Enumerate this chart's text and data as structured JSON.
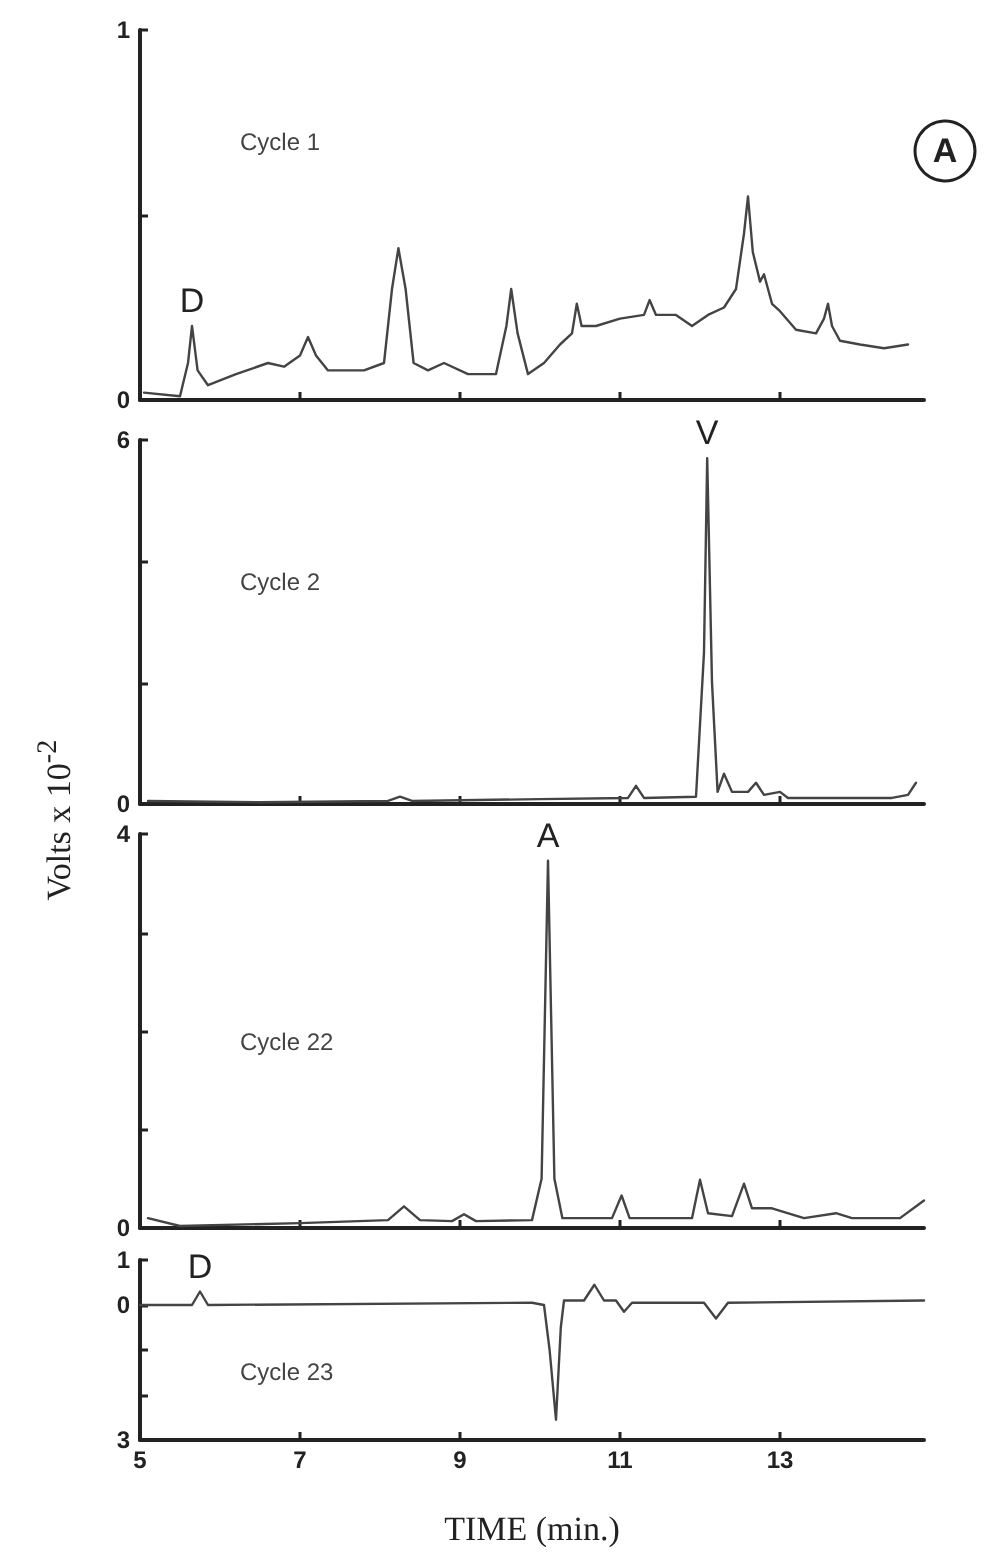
{
  "chart_data": [
    {
      "type": "line",
      "title": "Cycle 1",
      "color": "#444444",
      "marker": "none",
      "line_style": "solid",
      "grid": false,
      "tick_labels": "y",
      "xlim": [
        5,
        14.8
      ],
      "xticks": [
        5,
        7,
        9,
        11,
        13
      ],
      "ylim": [
        0,
        1
      ],
      "yticks": [
        0,
        {
          "value": 0.5,
          "label": null
        },
        1
      ],
      "annotations": [
        {
          "text": "D",
          "x": 5.65,
          "y": 0.2
        },
        "A"
      ],
      "x": [
        5.05,
        5.5,
        5.6,
        5.65,
        5.72,
        5.85,
        6.2,
        6.6,
        6.8,
        7.0,
        7.1,
        7.2,
        7.35,
        7.8,
        8.05,
        8.15,
        8.23,
        8.32,
        8.42,
        8.6,
        8.8,
        9.1,
        9.45,
        9.58,
        9.64,
        9.72,
        9.85,
        10.05,
        10.25,
        10.4,
        10.46,
        10.52,
        10.7,
        11.0,
        11.3,
        11.37,
        11.45,
        11.7,
        11.9,
        12.1,
        12.3,
        12.45,
        12.55,
        12.6,
        12.66,
        12.75,
        12.8,
        12.9,
        13.0,
        13.2,
        13.45,
        13.55,
        13.6,
        13.65,
        13.75,
        14.0,
        14.3,
        14.6
      ],
      "values": [
        0.02,
        0.01,
        0.1,
        0.2,
        0.08,
        0.04,
        0.07,
        0.1,
        0.09,
        0.12,
        0.17,
        0.12,
        0.08,
        0.08,
        0.1,
        0.3,
        0.41,
        0.3,
        0.1,
        0.08,
        0.1,
        0.07,
        0.07,
        0.2,
        0.3,
        0.18,
        0.07,
        0.1,
        0.15,
        0.18,
        0.26,
        0.2,
        0.2,
        0.22,
        0.23,
        0.27,
        0.23,
        0.23,
        0.2,
        0.23,
        0.25,
        0.3,
        0.45,
        0.55,
        0.4,
        0.32,
        0.34,
        0.26,
        0.24,
        0.19,
        0.18,
        0.22,
        0.26,
        0.2,
        0.16,
        0.15,
        0.14,
        0.15
      ]
    },
    {
      "type": "line",
      "title": "Cycle 2",
      "ylabel": "Volts x 10$^{-2}$",
      "color": "#444444",
      "marker": "none",
      "line_style": "solid",
      "grid": false,
      "tick_labels": "y",
      "xlim": [
        5,
        14.8
      ],
      "xticks": [
        5,
        7,
        9,
        11,
        13
      ],
      "ylim": [
        0,
        6
      ],
      "yticks": [
        0,
        {
          "value": 2,
          "label": null
        },
        {
          "value": 4,
          "label": null
        },
        6
      ],
      "annotations": [
        {
          "text": "V",
          "x": 12.09,
          "y": 5.7
        }
      ],
      "x": [
        5.1,
        6.5,
        8.1,
        8.25,
        8.4,
        10.0,
        11.1,
        11.2,
        11.3,
        11.95,
        12.05,
        12.09,
        12.15,
        12.22,
        12.3,
        12.4,
        12.6,
        12.7,
        12.8,
        13.0,
        13.1,
        14.4,
        14.6,
        14.7
      ],
      "values": [
        0.05,
        0.03,
        0.05,
        0.12,
        0.05,
        0.08,
        0.1,
        0.3,
        0.1,
        0.12,
        2.5,
        5.7,
        2.0,
        0.2,
        0.5,
        0.2,
        0.2,
        0.35,
        0.15,
        0.2,
        0.1,
        0.1,
        0.15,
        0.35
      ]
    },
    {
      "type": "line",
      "title": "Cycle 22",
      "color": "#444444",
      "marker": "none",
      "line_style": "solid",
      "grid": false,
      "tick_labels": "y",
      "xlim": [
        5,
        14.8
      ],
      "xticks": [
        5,
        7,
        9,
        11,
        13
      ],
      "ylim": [
        0,
        4
      ],
      "yticks": [
        0,
        {
          "value": 1,
          "label": null
        },
        {
          "value": 2,
          "label": null
        },
        {
          "value": 3,
          "label": null
        },
        4
      ],
      "annotations": [
        {
          "text": "A",
          "x": 10.1,
          "y": 3.73
        }
      ],
      "x": [
        5.1,
        5.5,
        7.0,
        8.1,
        8.3,
        8.5,
        8.9,
        9.05,
        9.2,
        9.9,
        10.02,
        10.1,
        10.18,
        10.28,
        10.9,
        11.02,
        11.12,
        11.9,
        12.0,
        12.1,
        12.4,
        12.55,
        12.65,
        12.9,
        13.3,
        13.7,
        13.9,
        14.5,
        14.8
      ],
      "values": [
        0.1,
        0.02,
        0.05,
        0.08,
        0.22,
        0.08,
        0.07,
        0.14,
        0.07,
        0.08,
        0.5,
        3.73,
        0.5,
        0.1,
        0.1,
        0.33,
        0.1,
        0.1,
        0.49,
        0.15,
        0.12,
        0.45,
        0.2,
        0.2,
        0.1,
        0.15,
        0.1,
        0.1,
        0.28
      ]
    },
    {
      "type": "line",
      "title": "Cycle 23",
      "xlabel": "TIME (min.)",
      "color": "#444444",
      "marker": "none",
      "line_style": "solid",
      "grid": false,
      "xlim": [
        5,
        14.8
      ],
      "xticks": [
        5,
        7,
        9,
        11,
        13
      ],
      "ylim": [
        -3,
        1
      ],
      "yticks": [
        {
          "value": -3,
          "label": "3"
        },
        {
          "value": -2,
          "label": null
        },
        {
          "value": -1,
          "label": null
        },
        0,
        1
      ],
      "annotations": [
        {
          "text": "D",
          "x": 5.75,
          "y": 0.3
        }
      ],
      "x": [
        5.0,
        5.65,
        5.75,
        5.85,
        9.9,
        10.05,
        10.12,
        10.2,
        10.26,
        10.3,
        10.55,
        10.68,
        10.8,
        10.95,
        11.05,
        11.15,
        12.05,
        12.2,
        12.35,
        14.8
      ],
      "values": [
        0,
        0,
        0.3,
        0,
        0.05,
        0,
        -1.0,
        -2.55,
        -0.5,
        0.1,
        0.1,
        0.45,
        0.1,
        0.1,
        -0.15,
        0.05,
        0.05,
        -0.3,
        0.05,
        0.1
      ]
    }
  ]
}
